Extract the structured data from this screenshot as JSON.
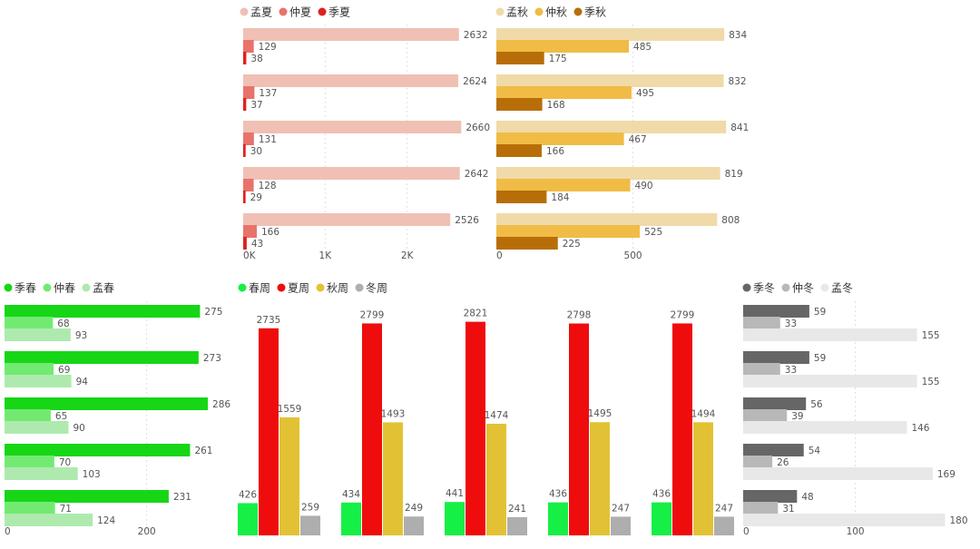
{
  "chart_data": [
    {
      "id": "summer",
      "type": "bar",
      "orientation": "horizontal",
      "legend_position": "top-left",
      "series": [
        {
          "name": "孟夏",
          "color": "#F0C0B4",
          "values": [
            2632,
            2624,
            2660,
            2642,
            2526
          ]
        },
        {
          "name": "仲夏",
          "color": "#E8736A",
          "values": [
            129,
            137,
            131,
            128,
            166
          ]
        },
        {
          "name": "季夏",
          "color": "#E02020",
          "values": [
            38,
            37,
            30,
            29,
            43
          ]
        }
      ],
      "xlim": [
        0,
        2900
      ],
      "ticks": [
        0,
        1000,
        2000
      ],
      "tick_labels": [
        "0K",
        "1K",
        "2K"
      ],
      "grid": true
    },
    {
      "id": "autumn",
      "type": "bar",
      "orientation": "horizontal",
      "legend_position": "top-left",
      "series": [
        {
          "name": "孟秋",
          "color": "#F0DAA8",
          "values": [
            834,
            832,
            841,
            819,
            808
          ]
        },
        {
          "name": "仲秋",
          "color": "#F0BC46",
          "values": [
            485,
            495,
            467,
            490,
            525
          ]
        },
        {
          "name": "季秋",
          "color": "#B86E08",
          "values": [
            175,
            168,
            166,
            184,
            225
          ]
        }
      ],
      "xlim": [
        0,
        900
      ],
      "ticks": [
        0,
        500
      ],
      "tick_labels": [
        "0",
        "500"
      ],
      "grid": true
    },
    {
      "id": "spring",
      "type": "bar",
      "orientation": "horizontal",
      "legend_position": "top-left",
      "series": [
        {
          "name": "季春",
          "color": "#16D616",
          "values": [
            275,
            273,
            286,
            261,
            231
          ]
        },
        {
          "name": "仲春",
          "color": "#72EA72",
          "values": [
            68,
            69,
            65,
            70,
            71
          ]
        },
        {
          "name": "孟春",
          "color": "#AEEAAE",
          "values": [
            93,
            94,
            90,
            103,
            124
          ]
        }
      ],
      "xlim": [
        0,
        300
      ],
      "ticks": [
        0,
        200
      ],
      "tick_labels": [
        "0",
        "200"
      ],
      "grid": true
    },
    {
      "id": "zhou",
      "type": "bar",
      "orientation": "vertical",
      "legend_position": "top-left",
      "series": [
        {
          "name": "春周",
          "color": "#16F046",
          "values": [
            426,
            434,
            441,
            436,
            436
          ]
        },
        {
          "name": "夏周",
          "color": "#EE0C0C",
          "values": [
            2735,
            2799,
            2821,
            2798,
            2799
          ]
        },
        {
          "name": "秋周",
          "color": "#E2C234",
          "values": [
            1559,
            1493,
            1474,
            1495,
            1494
          ]
        },
        {
          "name": "冬周",
          "color": "#AEAEAE",
          "values": [
            259,
            249,
            241,
            247,
            247
          ]
        }
      ],
      "ylim": [
        0,
        2900
      ],
      "grid": false
    },
    {
      "id": "winter",
      "type": "bar",
      "orientation": "horizontal",
      "legend_position": "top-left",
      "series": [
        {
          "name": "季冬",
          "color": "#666666",
          "values": [
            59,
            59,
            56,
            54,
            48
          ]
        },
        {
          "name": "仲冬",
          "color": "#B8B8B8",
          "values": [
            33,
            33,
            39,
            26,
            31
          ]
        },
        {
          "name": "孟冬",
          "color": "#E8E8E8",
          "values": [
            155,
            155,
            146,
            169,
            180
          ]
        }
      ],
      "xlim": [
        0,
        195
      ],
      "ticks": [
        0,
        100
      ],
      "tick_labels": [
        "0",
        "100"
      ],
      "grid": true
    }
  ]
}
